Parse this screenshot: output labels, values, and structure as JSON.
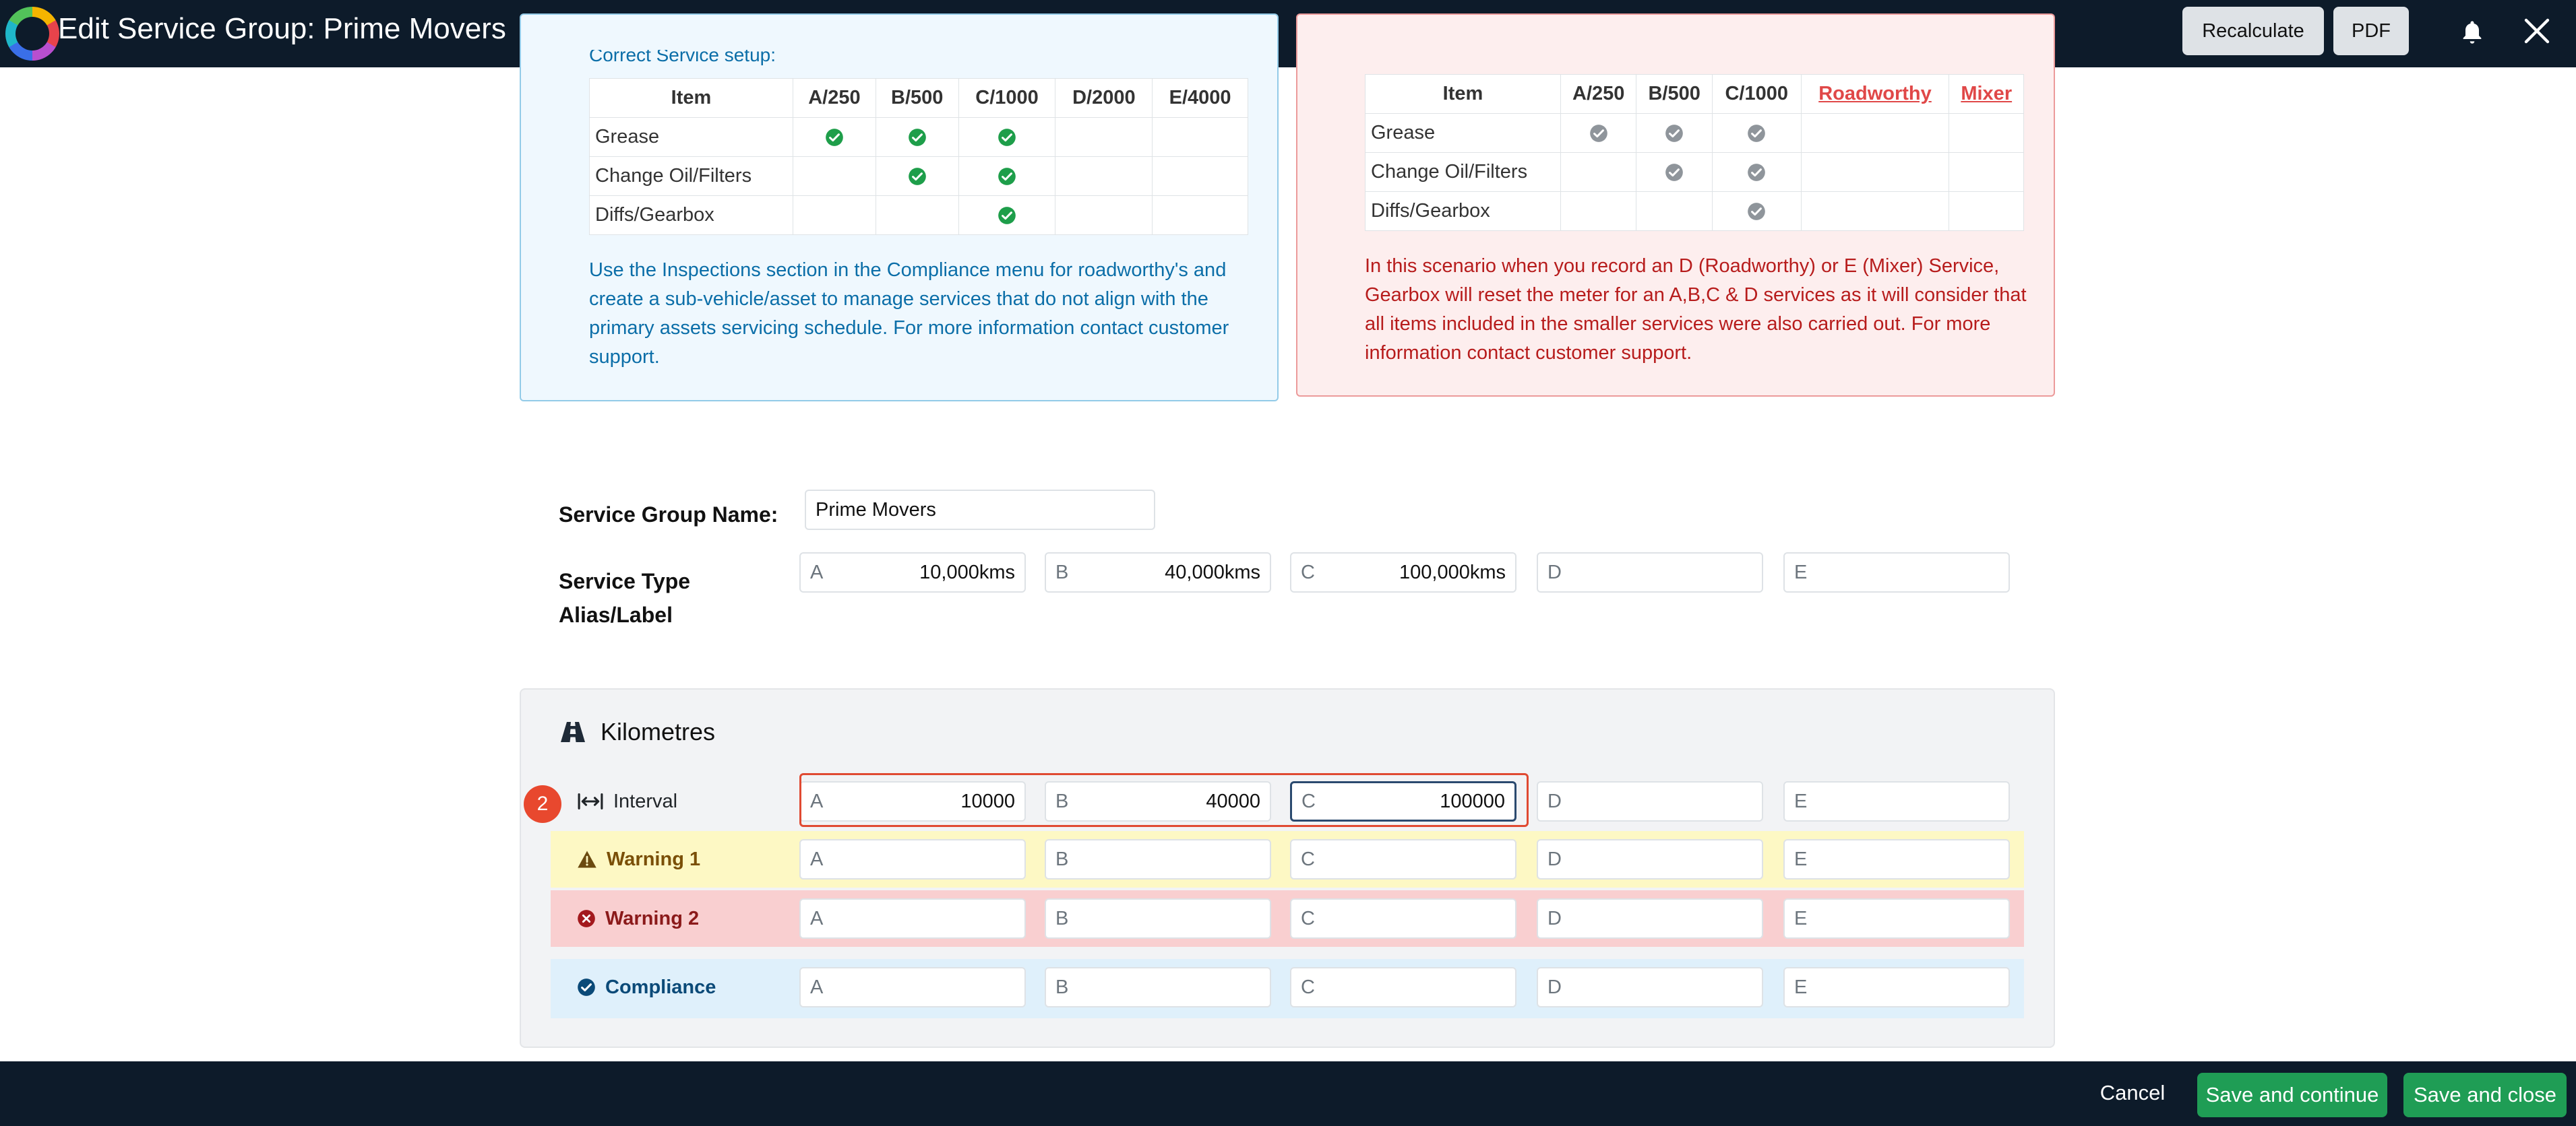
{
  "header": {
    "title_label": "Edit Service Group:",
    "title_value": "Prime Movers",
    "recalculate_label": "Recalculate",
    "pdf_label": "PDF"
  },
  "info_blue": {
    "cut_heading": "Correct Service setup:",
    "columns": [
      "Item",
      "A/250",
      "B/500",
      "C/1000",
      "D/2000",
      "E/4000"
    ],
    "rows": [
      {
        "item": "Grease",
        "checks": [
          true,
          true,
          true,
          false,
          false
        ]
      },
      {
        "item": "Change Oil/Filters",
        "checks": [
          false,
          true,
          true,
          false,
          false
        ]
      },
      {
        "item": "Diffs/Gearbox",
        "checks": [
          false,
          false,
          true,
          false,
          false
        ]
      }
    ],
    "text": "Use the Inspections section in the Compliance menu for roadworthy's and create a sub-vehicle/asset to manage services that do not align with the primary assets servicing schedule. For more information contact customer support.",
    "check_color": "#1e9e4a"
  },
  "info_red": {
    "columns": [
      "Item",
      "A/250",
      "B/500",
      "C/1000",
      "Roadworthy",
      "Mixer"
    ],
    "rows": [
      {
        "item": "Grease",
        "checks": [
          true,
          true,
          true,
          false,
          false
        ]
      },
      {
        "item": "Change Oil/Filters",
        "checks": [
          false,
          true,
          true,
          false,
          false
        ]
      },
      {
        "item": "Diffs/Gearbox",
        "checks": [
          false,
          false,
          true,
          false,
          false
        ]
      }
    ],
    "text": "In this scenario when you record an D (Roadworthy) or E (Mixer) Service, Gearbox will reset the meter for an A,B,C & D services as it will consider that all items included in the smaller services were also carried out. For more information contact customer support.",
    "check_color": "#8f959b"
  },
  "form": {
    "name_label": "Service Group Name:",
    "name_value": "Prime Movers",
    "alias_label": "Service Type Alias/Label",
    "alias": [
      {
        "prefix": "A",
        "value": "10,000kms"
      },
      {
        "prefix": "B",
        "value": "40,000kms"
      },
      {
        "prefix": "C",
        "value": "100,000kms"
      },
      {
        "prefix": "D",
        "value": ""
      },
      {
        "prefix": "E",
        "value": ""
      }
    ]
  },
  "kilometres": {
    "title": "Kilometres",
    "badge": "2",
    "rows": [
      {
        "label": "Interval",
        "icon": "interval-arrows-icon",
        "color": "#212529",
        "bg": "",
        "cells": [
          {
            "prefix": "A",
            "value": "10000"
          },
          {
            "prefix": "B",
            "value": "40000"
          },
          {
            "prefix": "C",
            "value": "100000"
          },
          {
            "prefix": "D",
            "value": ""
          },
          {
            "prefix": "E",
            "value": ""
          }
        ]
      },
      {
        "label": "Warning 1",
        "icon": "warning-triangle-icon",
        "color": "#7a4f07",
        "bg": "#fdf8c4",
        "cells": [
          {
            "prefix": "A",
            "value": ""
          },
          {
            "prefix": "B",
            "value": ""
          },
          {
            "prefix": "C",
            "value": ""
          },
          {
            "prefix": "D",
            "value": ""
          },
          {
            "prefix": "E",
            "value": ""
          }
        ]
      },
      {
        "label": "Warning 2",
        "icon": "error-circle-icon",
        "color": "#8b1a1a",
        "bg": "#f9cfd0",
        "cells": [
          {
            "prefix": "A",
            "value": ""
          },
          {
            "prefix": "B",
            "value": ""
          },
          {
            "prefix": "C",
            "value": ""
          },
          {
            "prefix": "D",
            "value": ""
          },
          {
            "prefix": "E",
            "value": ""
          }
        ]
      },
      {
        "label": "Compliance",
        "icon": "check-circle-icon",
        "color": "#0b4a78",
        "bg": "#dff0fb",
        "cells": [
          {
            "prefix": "A",
            "value": ""
          },
          {
            "prefix": "B",
            "value": ""
          },
          {
            "prefix": "C",
            "value": ""
          },
          {
            "prefix": "D",
            "value": ""
          },
          {
            "prefix": "E",
            "value": ""
          }
        ]
      }
    ]
  },
  "footer": {
    "cancel_label": "Cancel",
    "save_continue_label": "Save and continue",
    "save_close_label": "Save and close"
  }
}
